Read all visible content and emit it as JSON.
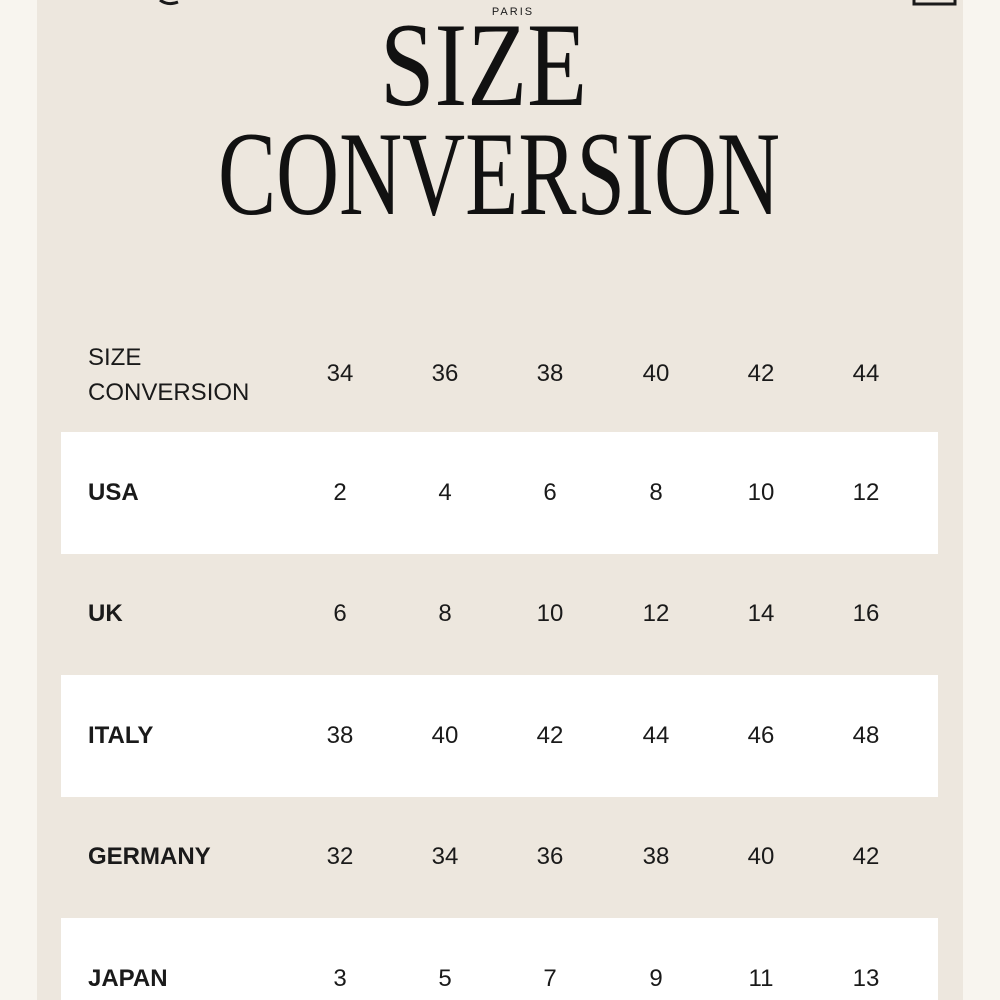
{
  "header": {
    "brand_sub": "PARIS"
  },
  "title": {
    "lines": [
      "SIZE",
      "CONVERSION"
    ]
  },
  "table": {
    "header_label": "SIZE CONVERSION",
    "columns": [
      34,
      36,
      38,
      40,
      42,
      44
    ],
    "rows": [
      {
        "label": "USA",
        "values": [
          2,
          4,
          6,
          8,
          10,
          12
        ]
      },
      {
        "label": "UK",
        "values": [
          6,
          8,
          10,
          12,
          14,
          16
        ]
      },
      {
        "label": "ITALY",
        "values": [
          38,
          40,
          42,
          44,
          46,
          48
        ]
      },
      {
        "label": "GERMANY",
        "values": [
          32,
          34,
          36,
          38,
          40,
          42
        ]
      },
      {
        "label": "JAPAN",
        "values": [
          3,
          5,
          7,
          9,
          11,
          13
        ]
      }
    ]
  }
}
